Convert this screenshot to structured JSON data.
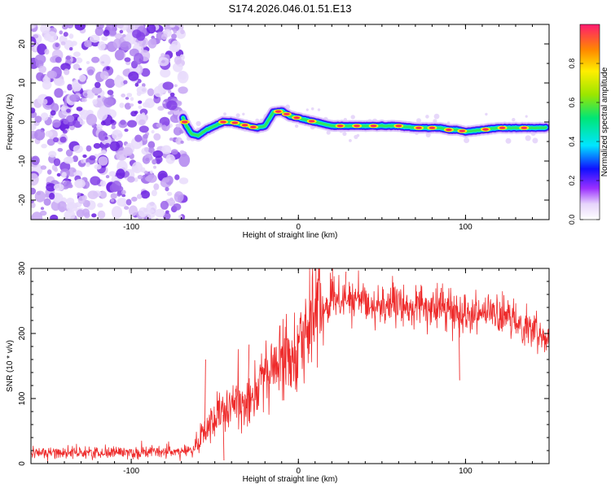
{
  "title": "S174.2026.046.01.51.E13",
  "chart_data": [
    {
      "type": "heatmap",
      "name": "spectrogram",
      "xlabel": "Height of straight line (km)",
      "ylabel": "Frequency (Hz)",
      "xlim": [
        -160,
        150
      ],
      "ylim": [
        -25,
        25
      ],
      "xticks": [
        -100,
        0,
        100
      ],
      "yticks": [
        -20,
        -10,
        0,
        10,
        20
      ],
      "noise_region_x": [
        -160,
        -70
      ],
      "ridge": {
        "x": [
          -69,
          -67,
          -64,
          -60,
          -55,
          -50,
          -45,
          -40,
          -35,
          -30,
          -25,
          -20,
          -15,
          -10,
          -5,
          0,
          5,
          10,
          15,
          20,
          30,
          40,
          50,
          60,
          70,
          80,
          85,
          90,
          95,
          100,
          110,
          120,
          130,
          140,
          148
        ],
        "y": [
          1,
          -1,
          -3,
          -3.5,
          -2,
          -1,
          0,
          0,
          -0.5,
          -1,
          -1.5,
          -1,
          2.5,
          2.8,
          1.5,
          1,
          0.5,
          0,
          -0.5,
          -1,
          -1,
          -1,
          -1,
          -1,
          -1.5,
          -1.5,
          -1.5,
          -2,
          -2,
          -2.5,
          -2,
          -1.5,
          -1.5,
          -1.5,
          -1.5
        ],
        "peaks_x": [
          -68,
          -45,
          -38,
          -32,
          -27,
          -12,
          -7,
          -1,
          8,
          25,
          35,
          45,
          60,
          72,
          80,
          90,
          98,
          112,
          122,
          135
        ]
      },
      "colorbar": {
        "label": "Normalized spectral amplitude",
        "range": [
          0,
          1
        ],
        "ticks": [
          "0.0",
          "0.2",
          "0.4",
          "0.6",
          "0.8"
        ]
      }
    },
    {
      "type": "line",
      "name": "snr",
      "xlabel": "Height of straight line (km)",
      "ylabel": "SNR (10 * v/v)",
      "xlim": [
        -160,
        150
      ],
      "ylim": [
        0,
        300
      ],
      "xticks": [
        -100,
        0,
        100
      ],
      "yticks": [
        0,
        100,
        200,
        300
      ],
      "color": "#ee2b2b",
      "trend": {
        "x": [
          -160,
          -120,
          -80,
          -63,
          -60,
          -55,
          -50,
          -45,
          -40,
          -30,
          -20,
          -10,
          0,
          5,
          10,
          20,
          30,
          40,
          60,
          80,
          100,
          110,
          120,
          130,
          140,
          150
        ],
        "y": [
          17,
          17,
          18,
          20,
          30,
          55,
          72,
          75,
          85,
          105,
          130,
          160,
          190,
          205,
          225,
          250,
          255,
          245,
          242,
          238,
          232,
          235,
          225,
          220,
          205,
          200
        ]
      },
      "spikes": [
        {
          "x": -56,
          "y": 160
        },
        {
          "x": -30,
          "y": 183
        },
        {
          "x": 20,
          "y": 300
        },
        {
          "x": 28,
          "y": 295
        },
        {
          "x": 85,
          "y": 270
        },
        {
          "x": 96,
          "y": 128
        },
        {
          "x": -45,
          "y": 5
        },
        {
          "x": -57,
          "y": 45
        }
      ]
    }
  ]
}
